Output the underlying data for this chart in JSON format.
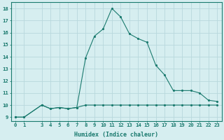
{
  "xlabel": "Humidex (Indice chaleur)",
  "x_values": [
    0,
    1,
    3,
    4,
    5,
    6,
    7,
    8,
    9,
    10,
    11,
    12,
    13,
    14,
    15,
    16,
    17,
    18,
    19,
    20,
    21,
    22,
    23
  ],
  "y_values1": [
    9,
    9,
    10,
    9.7,
    9.8,
    9.7,
    9.8,
    10,
    10,
    10,
    10,
    10,
    10,
    10,
    10,
    10,
    10,
    10,
    10,
    10,
    10,
    10,
    10
  ],
  "y_values2": [
    9,
    9,
    10,
    9.7,
    9.8,
    9.7,
    9.8,
    13.9,
    15.7,
    16.3,
    18,
    17.3,
    15.9,
    15.5,
    15.2,
    13.3,
    12.5,
    11.2,
    11.2,
    11.2,
    11.0,
    10.4,
    10.3
  ],
  "line_color": "#1a7a6e",
  "bg_color": "#d6eef0",
  "grid_color": "#b8d8dc",
  "ylim": [
    8.7,
    18.5
  ],
  "xlim": [
    -0.5,
    23.5
  ],
  "yticks": [
    9,
    10,
    11,
    12,
    13,
    14,
    15,
    16,
    17,
    18
  ],
  "xticks": [
    0,
    1,
    3,
    4,
    5,
    6,
    7,
    8,
    9,
    10,
    11,
    12,
    13,
    14,
    15,
    16,
    17,
    18,
    19,
    20,
    21,
    22,
    23
  ],
  "tick_fontsize": 5.2,
  "xlabel_fontsize": 6.0
}
